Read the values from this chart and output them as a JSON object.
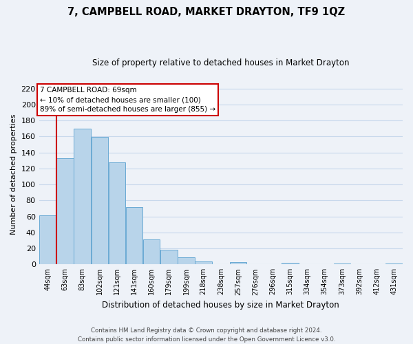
{
  "title": "7, CAMPBELL ROAD, MARKET DRAYTON, TF9 1QZ",
  "subtitle": "Size of property relative to detached houses in Market Drayton",
  "xlabel": "Distribution of detached houses by size in Market Drayton",
  "ylabel": "Number of detached properties",
  "bar_labels": [
    "44sqm",
    "63sqm",
    "83sqm",
    "102sqm",
    "121sqm",
    "141sqm",
    "160sqm",
    "179sqm",
    "199sqm",
    "218sqm",
    "238sqm",
    "257sqm",
    "276sqm",
    "296sqm",
    "315sqm",
    "334sqm",
    "354sqm",
    "373sqm",
    "392sqm",
    "412sqm",
    "431sqm"
  ],
  "bar_values": [
    61,
    133,
    170,
    159,
    128,
    72,
    31,
    18,
    9,
    4,
    0,
    3,
    0,
    0,
    2,
    0,
    0,
    1,
    0,
    0,
    1
  ],
  "bar_color": "#b8d4ea",
  "bar_edge_color": "#6aaad4",
  "ylim": [
    0,
    225
  ],
  "yticks": [
    0,
    20,
    40,
    60,
    80,
    100,
    120,
    140,
    160,
    180,
    200,
    220
  ],
  "vline_x": 0.5,
  "vline_color": "#cc0000",
  "annotation_title": "7 CAMPBELL ROAD: 69sqm",
  "annotation_line1": "← 10% of detached houses are smaller (100)",
  "annotation_line2": "89% of semi-detached houses are larger (855) →",
  "annotation_box_color": "#ffffff",
  "annotation_box_edge": "#cc0000",
  "grid_color": "#c8d8ec",
  "footer_line1": "Contains HM Land Registry data © Crown copyright and database right 2024.",
  "footer_line2": "Contains public sector information licensed under the Open Government Licence v3.0.",
  "background_color": "#eef2f8"
}
